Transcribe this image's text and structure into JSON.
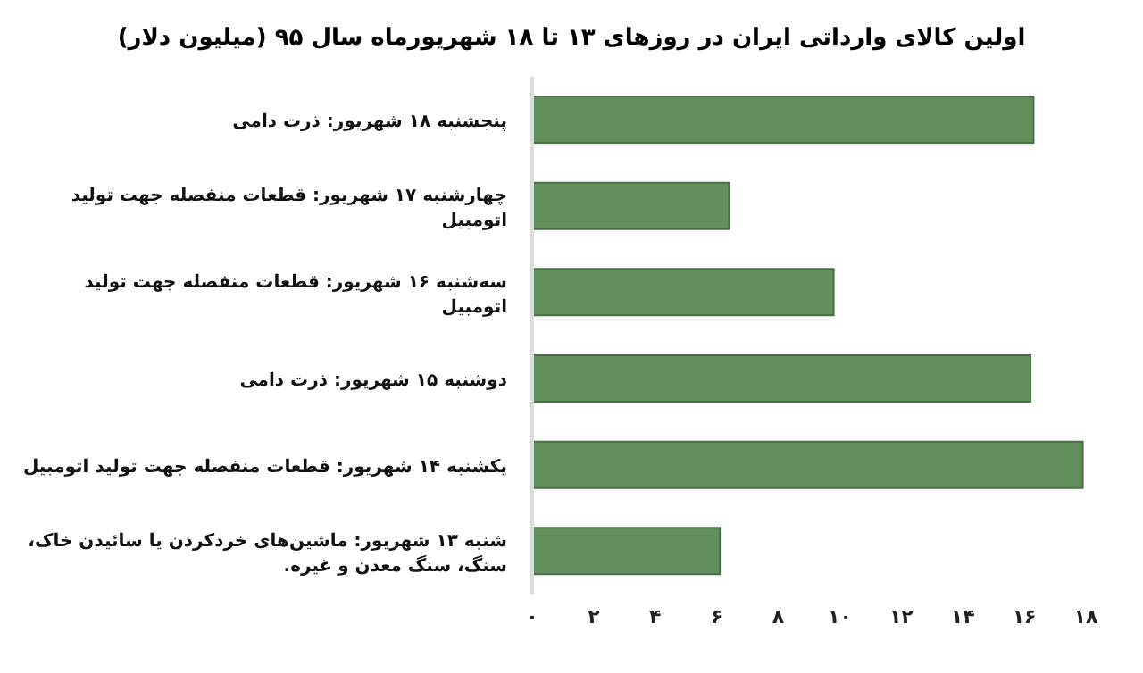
{
  "chart_data": {
    "type": "bar",
    "orientation": "horizontal",
    "title": "اولین کالای وارداتی ایران در روزهای ۱۳ تا ۱۸ شهریورماه سال ۹۵ (میلیون دلار)",
    "categories": [
      "پنجشنبه ۱۸ شهریور: ذرت دامی",
      "چهارشنبه ۱۷ شهریور: قطعات منفصله جهت تولید اتومبیل",
      "سه‌شنبه ۱۶ شهریور: قطعات منفصله جهت تولید اتومبیل",
      "دوشنبه ۱۵ شهریور: ذرت دامی",
      "یکشنبه ۱۴ شهریور: قطعات منفصله جهت تولید اتومبیل",
      "شنبه ۱۳ شهریور: ماشین‌های خردکردن یا سائیدن خاک، سنگ، سنگ معدن و غیره."
    ],
    "values": [
      16.3,
      6.4,
      9.8,
      16.2,
      17.9,
      6.1
    ],
    "color": "#62905d",
    "xlim": [
      0,
      18
    ],
    "xticks": [
      {
        "value": 0,
        "label": "۰"
      },
      {
        "value": 2,
        "label": "۲"
      },
      {
        "value": 4,
        "label": "۴"
      },
      {
        "value": 6,
        "label": "۶"
      },
      {
        "value": 8,
        "label": "۸"
      },
      {
        "value": 10,
        "label": "۱۰"
      },
      {
        "value": 12,
        "label": "۱۲"
      },
      {
        "value": 14,
        "label": "۱۴"
      },
      {
        "value": 16,
        "label": "۱۶"
      },
      {
        "value": 18,
        "label": "۱۸"
      }
    ],
    "grid": false,
    "legend": false
  }
}
